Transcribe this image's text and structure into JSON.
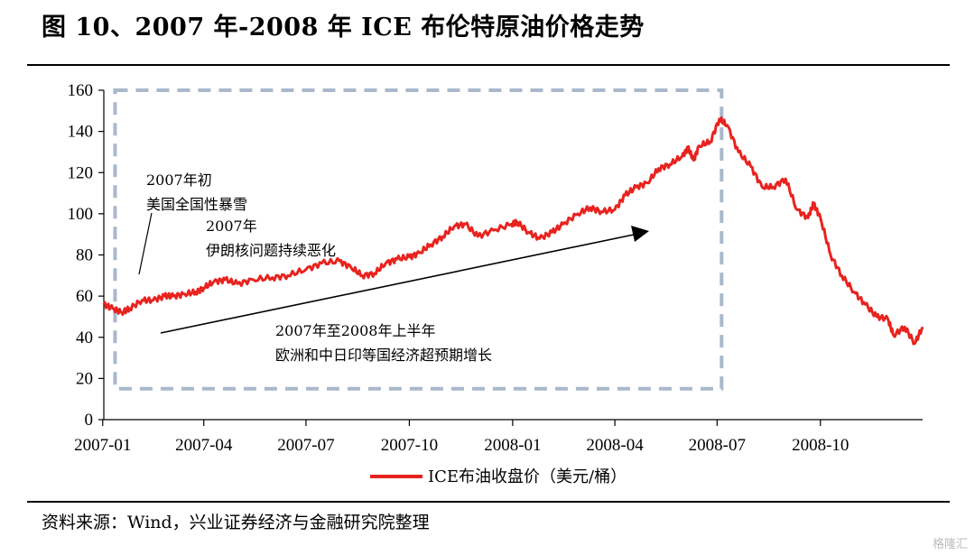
{
  "figure": {
    "title": "图 10、2007 年-2008 年 ICE 布伦特原油价格走势",
    "source": "资料来源：Wind，兴业证券经济与金融研究院整理",
    "watermark": "格隆汇"
  },
  "chart_data": {
    "type": "line",
    "title": "",
    "xlabel": "",
    "ylabel": "",
    "x_range": [
      "2007-01-02",
      "2008-12-31"
    ],
    "x_ticks": [
      "2007-01",
      "2007-04",
      "2007-07",
      "2007-10",
      "2008-01",
      "2008-04",
      "2008-07",
      "2008-10"
    ],
    "y_ticks": [
      0,
      20,
      40,
      60,
      80,
      100,
      120,
      140,
      160
    ],
    "ylim": [
      0,
      160
    ],
    "grid": false,
    "legend": "bottom-center",
    "series": [
      {
        "name": "ICE布油收盘价（美元/桶）",
        "color": "#e8231f",
        "points": [
          [
            "2007-01-02",
            56
          ],
          [
            "2007-01-10",
            54
          ],
          [
            "2007-01-18",
            52
          ],
          [
            "2007-01-25",
            54
          ],
          [
            "2007-02-05",
            58
          ],
          [
            "2007-02-15",
            58
          ],
          [
            "2007-02-25",
            60
          ],
          [
            "2007-03-05",
            60
          ],
          [
            "2007-03-15",
            61
          ],
          [
            "2007-03-25",
            62
          ],
          [
            "2007-04-01",
            64
          ],
          [
            "2007-04-10",
            67
          ],
          [
            "2007-04-20",
            68
          ],
          [
            "2007-05-01",
            66
          ],
          [
            "2007-05-15",
            68
          ],
          [
            "2007-06-01",
            69
          ],
          [
            "2007-06-15",
            70
          ],
          [
            "2007-07-01",
            73
          ],
          [
            "2007-07-15",
            76
          ],
          [
            "2007-07-31",
            77
          ],
          [
            "2007-08-10",
            74
          ],
          [
            "2007-08-20",
            70
          ],
          [
            "2007-08-31",
            71
          ],
          [
            "2007-09-10",
            76
          ],
          [
            "2007-09-20",
            78
          ],
          [
            "2007-10-01",
            79
          ],
          [
            "2007-10-10",
            81
          ],
          [
            "2007-10-20",
            85
          ],
          [
            "2007-10-31",
            89
          ],
          [
            "2007-11-10",
            94
          ],
          [
            "2007-11-20",
            95
          ],
          [
            "2007-12-01",
            89
          ],
          [
            "2007-12-15",
            92
          ],
          [
            "2007-12-31",
            95
          ],
          [
            "2008-01-05",
            96
          ],
          [
            "2008-01-15",
            91
          ],
          [
            "2008-01-25",
            88
          ],
          [
            "2008-02-05",
            91
          ],
          [
            "2008-02-15",
            95
          ],
          [
            "2008-02-28",
            100
          ],
          [
            "2008-03-10",
            103
          ],
          [
            "2008-03-20",
            101
          ],
          [
            "2008-04-01",
            102
          ],
          [
            "2008-04-10",
            109
          ],
          [
            "2008-04-20",
            113
          ],
          [
            "2008-04-30",
            115
          ],
          [
            "2008-05-10",
            122
          ],
          [
            "2008-05-20",
            124
          ],
          [
            "2008-05-31",
            128
          ],
          [
            "2008-06-05",
            132
          ],
          [
            "2008-06-10",
            126
          ],
          [
            "2008-06-15",
            133
          ],
          [
            "2008-06-25",
            135
          ],
          [
            "2008-07-03",
            146
          ],
          [
            "2008-07-10",
            143
          ],
          [
            "2008-07-20",
            130
          ],
          [
            "2008-07-31",
            123
          ],
          [
            "2008-08-10",
            113
          ],
          [
            "2008-08-20",
            113
          ],
          [
            "2008-08-31",
            117
          ],
          [
            "2008-09-10",
            102
          ],
          [
            "2008-09-20",
            98
          ],
          [
            "2008-09-25",
            105
          ],
          [
            "2008-10-01",
            98
          ],
          [
            "2008-10-10",
            80
          ],
          [
            "2008-10-20",
            70
          ],
          [
            "2008-10-31",
            62
          ],
          [
            "2008-11-10",
            56
          ],
          [
            "2008-11-20",
            50
          ],
          [
            "2008-11-30",
            49
          ],
          [
            "2008-12-05",
            41
          ],
          [
            "2008-12-15",
            45
          ],
          [
            "2008-12-24",
            37
          ],
          [
            "2008-12-31",
            45
          ]
        ]
      }
    ],
    "annotations": [
      {
        "text": "2007年初",
        "lines": [
          "2007年初",
          "美国全国性暴雪"
        ],
        "at": [
          "2007-02-10",
          102
        ]
      },
      {
        "text": "2007年",
        "lines": [
          "2007年",
          "伊朗核问题持续恶化"
        ],
        "at": [
          "2007-04-15",
          86
        ]
      },
      {
        "text": "2007年至2008年上半年",
        "lines": [
          "2007年至2008年上半年",
          "欧洲和中日印等国经济超预期增长"
        ],
        "at": [
          "2007-08-15",
          36
        ]
      }
    ],
    "dashed_box": {
      "x": [
        "2007-01-12",
        "2008-07-05"
      ],
      "y": [
        15,
        160
      ]
    }
  }
}
